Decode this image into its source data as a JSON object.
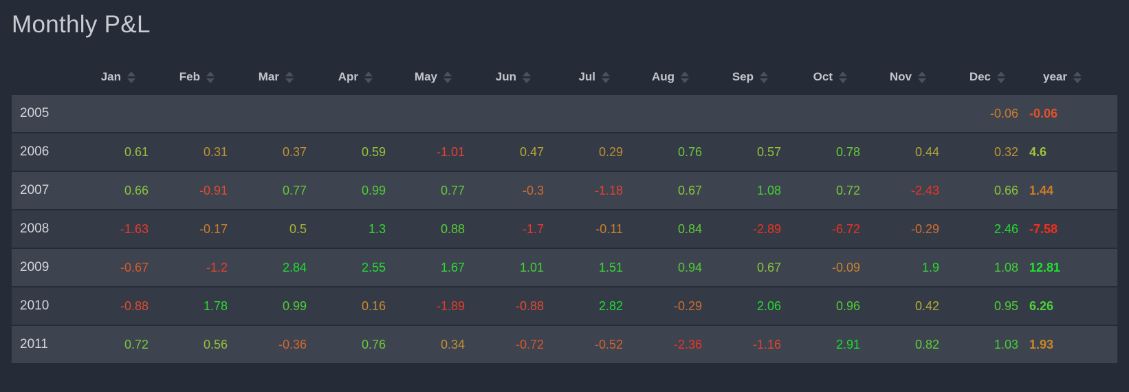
{
  "page": {
    "title": "Monthly P&L",
    "background_color": "#262c37",
    "row_stripe_light": "#3d4450",
    "row_stripe_dark": "#343b47"
  },
  "table": {
    "sort_icon_name": "sort-up-down-carets",
    "sort_icon_color": "#49525f",
    "columns": [
      "Jan",
      "Feb",
      "Mar",
      "Apr",
      "May",
      "Jun",
      "Jul",
      "Aug",
      "Sep",
      "Oct",
      "Nov",
      "Dec",
      "year"
    ],
    "rows": [
      {
        "year": "2005",
        "cells": [
          {
            "v": "",
            "c": ""
          },
          {
            "v": "",
            "c": ""
          },
          {
            "v": "",
            "c": ""
          },
          {
            "v": "",
            "c": ""
          },
          {
            "v": "",
            "c": ""
          },
          {
            "v": "",
            "c": ""
          },
          {
            "v": "",
            "c": ""
          },
          {
            "v": "",
            "c": ""
          },
          {
            "v": "",
            "c": ""
          },
          {
            "v": "",
            "c": ""
          },
          {
            "v": "",
            "c": ""
          },
          {
            "v": "-0.06",
            "c": "#cb7c2d"
          },
          {
            "v": "-0.06",
            "c": "#e0512a"
          }
        ]
      },
      {
        "year": "2006",
        "cells": [
          {
            "v": "0.61",
            "c": "#98c03b"
          },
          {
            "v": "0.31",
            "c": "#c09132"
          },
          {
            "v": "0.37",
            "c": "#c09132"
          },
          {
            "v": "0.59",
            "c": "#98c03b"
          },
          {
            "v": "-1.01",
            "c": "#e4422c"
          },
          {
            "v": "0.47",
            "c": "#b3a634"
          },
          {
            "v": "0.29",
            "c": "#c18c30"
          },
          {
            "v": "0.76",
            "c": "#6cc739"
          },
          {
            "v": "0.57",
            "c": "#93c23b"
          },
          {
            "v": "0.78",
            "c": "#68c838"
          },
          {
            "v": "0.44",
            "c": "#b3a634"
          },
          {
            "v": "0.32",
            "c": "#c09132"
          },
          {
            "v": "4.6",
            "c": "#9cc33c"
          }
        ]
      },
      {
        "year": "2007",
        "cells": [
          {
            "v": "0.66",
            "c": "#89c43a"
          },
          {
            "v": "-0.91",
            "c": "#df4b2e"
          },
          {
            "v": "0.77",
            "c": "#63c938"
          },
          {
            "v": "0.99",
            "c": "#4ecd36"
          },
          {
            "v": "0.77",
            "c": "#63c938"
          },
          {
            "v": "-0.3",
            "c": "#d26b2c"
          },
          {
            "v": "-1.18",
            "c": "#e4422c"
          },
          {
            "v": "0.67",
            "c": "#89c43a"
          },
          {
            "v": "1.08",
            "c": "#43d135"
          },
          {
            "v": "0.72",
            "c": "#7ac63a"
          },
          {
            "v": "-2.43",
            "c": "#ee3223"
          },
          {
            "v": "0.66",
            "c": "#89c43a"
          },
          {
            "v": "1.44",
            "c": "#cc7c28"
          }
        ]
      },
      {
        "year": "2008",
        "cells": [
          {
            "v": "-1.63",
            "c": "#e93a28"
          },
          {
            "v": "-0.17",
            "c": "#cb7c2d"
          },
          {
            "v": "0.5",
            "c": "#abb035"
          },
          {
            "v": "1.3",
            "c": "#36d633"
          },
          {
            "v": "0.88",
            "c": "#57cb37"
          },
          {
            "v": "-1.7",
            "c": "#e93a28"
          },
          {
            "v": "-0.11",
            "c": "#cc7e2d"
          },
          {
            "v": "0.84",
            "c": "#5ec937"
          },
          {
            "v": "-2.89",
            "c": "#ef3122"
          },
          {
            "v": "-6.72",
            "c": "#f22f1f"
          },
          {
            "v": "-0.29",
            "c": "#d26c2c"
          },
          {
            "v": "2.46",
            "c": "#23dc2e"
          },
          {
            "v": "-7.58",
            "c": "#f52e1d"
          }
        ]
      },
      {
        "year": "2009",
        "cells": [
          {
            "v": "-0.67",
            "c": "#da582c"
          },
          {
            "v": "-1.2",
            "c": "#e4422c"
          },
          {
            "v": "2.84",
            "c": "#1fdd2c"
          },
          {
            "v": "2.55",
            "c": "#22dc2d"
          },
          {
            "v": "1.67",
            "c": "#31d732"
          },
          {
            "v": "1.01",
            "c": "#47cf35"
          },
          {
            "v": "1.51",
            "c": "#36d633"
          },
          {
            "v": "0.94",
            "c": "#52cc36"
          },
          {
            "v": "0.67",
            "c": "#89c43a"
          },
          {
            "v": "-0.09",
            "c": "#cc812e"
          },
          {
            "v": "1.9",
            "c": "#2bd930"
          },
          {
            "v": "1.08",
            "c": "#43d135"
          },
          {
            "v": "12.81",
            "c": "#20e02b"
          }
        ]
      },
      {
        "year": "2010",
        "cells": [
          {
            "v": "-0.88",
            "c": "#df4b2e"
          },
          {
            "v": "1.78",
            "c": "#2ed831"
          },
          {
            "v": "0.99",
            "c": "#4ecd36"
          },
          {
            "v": "0.16",
            "c": "#c48b30"
          },
          {
            "v": "-1.89",
            "c": "#e83a28"
          },
          {
            "v": "-0.88",
            "c": "#df4b2e"
          },
          {
            "v": "2.82",
            "c": "#1fdd2c"
          },
          {
            "v": "-0.29",
            "c": "#d26c2c"
          },
          {
            "v": "2.06",
            "c": "#27da2f"
          },
          {
            "v": "0.96",
            "c": "#50cc36"
          },
          {
            "v": "0.42",
            "c": "#b5ab34"
          },
          {
            "v": "0.95",
            "c": "#52cc36"
          },
          {
            "v": "6.26",
            "c": "#4ed238"
          }
        ]
      },
      {
        "year": "2011",
        "cells": [
          {
            "v": "0.72",
            "c": "#7ac63a"
          },
          {
            "v": "0.56",
            "c": "#98c03b"
          },
          {
            "v": "-0.36",
            "c": "#d5662c"
          },
          {
            "v": "0.76",
            "c": "#6cc739"
          },
          {
            "v": "0.34",
            "c": "#c09132"
          },
          {
            "v": "-0.72",
            "c": "#d9552c"
          },
          {
            "v": "-0.52",
            "c": "#d6602c"
          },
          {
            "v": "-2.36",
            "c": "#ee3324"
          },
          {
            "v": "-1.16",
            "c": "#e4432d"
          },
          {
            "v": "2.91",
            "c": "#1edd2c"
          },
          {
            "v": "0.82",
            "c": "#60c938"
          },
          {
            "v": "1.03",
            "c": "#46cf35"
          },
          {
            "v": "1.93",
            "c": "#c98628"
          }
        ]
      }
    ]
  }
}
